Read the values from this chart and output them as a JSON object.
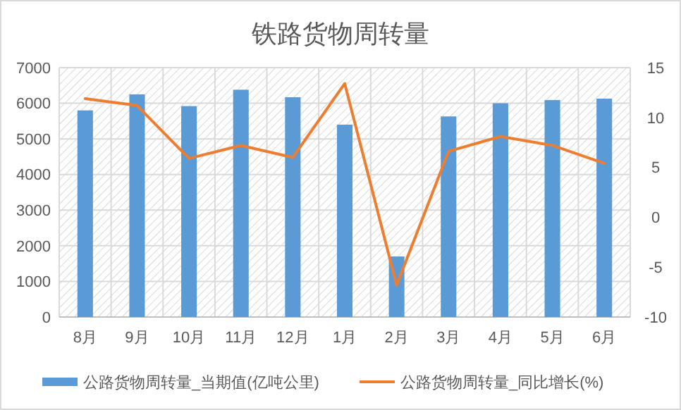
{
  "chart_data": {
    "type": "bar",
    "title": "铁路货物周转量",
    "categories": [
      "8月",
      "9月",
      "10月",
      "11月",
      "12月",
      "1月",
      "2月",
      "3月",
      "4月",
      "5月",
      "6月"
    ],
    "series": [
      {
        "name": "公路货物周转量_当期值(亿吨公里)",
        "color": "#5b9bd5",
        "values": [
          5800,
          6250,
          5920,
          6380,
          6170,
          5400,
          1700,
          5630,
          6000,
          6090,
          6130
        ]
      },
      {
        "name": "公路货物周转量_同比增长(%)",
        "type": "line",
        "axis": "y2",
        "color": "#ed7d31",
        "values": [
          11.9,
          11.2,
          5.9,
          7.2,
          6.0,
          13.4,
          -6.8,
          6.6,
          8.1,
          7.2,
          5.4
        ]
      }
    ],
    "ylim": [
      0,
      7000
    ],
    "yticks": [
      0,
      1000,
      2000,
      3000,
      4000,
      5000,
      6000,
      7000
    ],
    "y2lim": [
      -10,
      15
    ],
    "y2ticks": [
      -10,
      -5,
      0,
      5,
      10,
      15
    ],
    "grid": true,
    "legend": "bottom"
  }
}
